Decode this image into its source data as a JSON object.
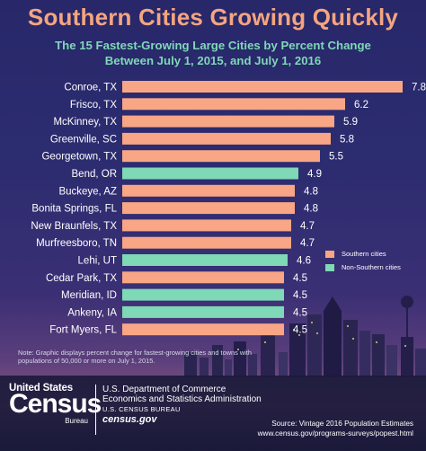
{
  "chart_data": {
    "type": "bar",
    "orientation": "horizontal",
    "title": "Southern Cities Growing Quickly",
    "subtitle_line1": "The 15 Fastest-Growing Large Cities by Percent Change",
    "subtitle_line2": "Between July 1, 2015, and July 1, 2016",
    "categories": [
      "Conroe, TX",
      "Frisco, TX",
      "McKinney, TX",
      "Greenville, SC",
      "Georgetown, TX",
      "Bend, OR",
      "Buckeye, AZ",
      "Bonita Springs, FL",
      "New Braunfels, TX",
      "Murfreesboro, TN",
      "Lehi, UT",
      "Cedar Park, TX",
      "Meridian, ID",
      "Ankeny, IA",
      "Fort Myers, FL"
    ],
    "values": [
      7.8,
      6.2,
      5.9,
      5.8,
      5.5,
      4.9,
      4.8,
      4.8,
      4.7,
      4.7,
      4.6,
      4.5,
      4.5,
      4.5,
      4.5
    ],
    "value_labels": [
      "7.8",
      "6.2",
      "5.9",
      "5.8",
      "5.5",
      "4.9",
      "4.8",
      "4.8",
      "4.7",
      "4.7",
      "4.6",
      "4.5",
      "4.5",
      "4.5",
      "4.5"
    ],
    "groups": [
      "southern",
      "southern",
      "southern",
      "southern",
      "southern",
      "non-southern",
      "southern",
      "southern",
      "southern",
      "southern",
      "non-southern",
      "southern",
      "non-southern",
      "non-southern",
      "southern"
    ],
    "xlim": [
      0,
      8
    ],
    "grid": false,
    "legend": [
      {
        "key": "southern",
        "label": "Southern cities",
        "color": "#f8a685"
      },
      {
        "key": "non-southern",
        "label": "Non-Southern cities",
        "color": "#7fd8b6"
      }
    ],
    "legend_position": "right"
  },
  "note": "Note: Graphic displays percent change for fastest-growing cities and towns with populations of 50,000 or more on July 1, 2015.",
  "footer": {
    "logo_top": "United States",
    "logo_main": "Census",
    "logo_sub": "Bureau",
    "agency_line1": "U.S. Department of Commerce",
    "agency_line2": "Economics and Statistics Administration",
    "agency_line3": "U.S. CENSUS BUREAU",
    "agency_site": "census.gov",
    "source_line1": "Source: Vintage 2016 Population Estimates",
    "source_line2": "www.census.gov/programs-surveys/popest.html"
  },
  "colors": {
    "southern": "#f8a685",
    "non_southern": "#7fd8b6",
    "title": "#f5a57f",
    "subtitle": "#7fd8b6",
    "background": "#2c2c70"
  }
}
